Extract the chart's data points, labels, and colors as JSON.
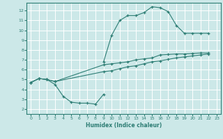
{
  "bg_color": "#cce8e8",
  "line_color": "#2d7d74",
  "grid_color": "#ffffff",
  "xlabel": "Humidex (Indice chaleur)",
  "xlim": [
    -0.5,
    23.5
  ],
  "ylim": [
    1.5,
    12.8
  ],
  "xticks": [
    0,
    1,
    2,
    3,
    4,
    5,
    6,
    7,
    8,
    9,
    10,
    11,
    12,
    13,
    14,
    15,
    16,
    17,
    18,
    19,
    20,
    21,
    22,
    23
  ],
  "yticks": [
    2,
    3,
    4,
    5,
    6,
    7,
    8,
    9,
    10,
    11,
    12
  ],
  "line1_x": [
    9,
    10,
    11,
    12,
    13,
    14,
    15,
    16,
    17,
    18,
    19,
    20,
    21,
    22
  ],
  "line1_y": [
    6.8,
    9.5,
    11.0,
    11.5,
    11.5,
    11.8,
    12.4,
    12.3,
    11.9,
    10.5,
    9.7,
    9.7,
    9.7,
    9.7
  ],
  "line2_x": [
    0,
    1,
    2,
    3,
    9,
    10,
    11,
    12,
    13,
    14,
    15,
    16,
    17,
    18,
    19,
    20,
    21,
    22
  ],
  "line2_y": [
    4.7,
    5.1,
    5.0,
    4.8,
    6.5,
    6.6,
    6.7,
    6.8,
    7.0,
    7.1,
    7.2,
    7.5,
    7.55,
    7.6,
    7.6,
    7.65,
    7.7,
    7.7
  ],
  "line3_x": [
    0,
    1,
    2,
    3,
    9,
    10,
    11,
    12,
    13,
    14,
    15,
    16,
    17,
    18,
    19,
    20,
    21,
    22
  ],
  "line3_y": [
    4.7,
    5.1,
    5.0,
    4.8,
    5.8,
    5.9,
    6.1,
    6.3,
    6.4,
    6.6,
    6.8,
    6.9,
    7.05,
    7.2,
    7.3,
    7.4,
    7.5,
    7.6
  ],
  "line4_x": [
    0,
    1,
    2,
    3,
    4,
    5,
    6,
    7,
    8,
    9
  ],
  "line4_y": [
    4.7,
    5.1,
    5.0,
    4.5,
    3.3,
    2.7,
    2.6,
    2.6,
    2.5,
    3.5
  ]
}
